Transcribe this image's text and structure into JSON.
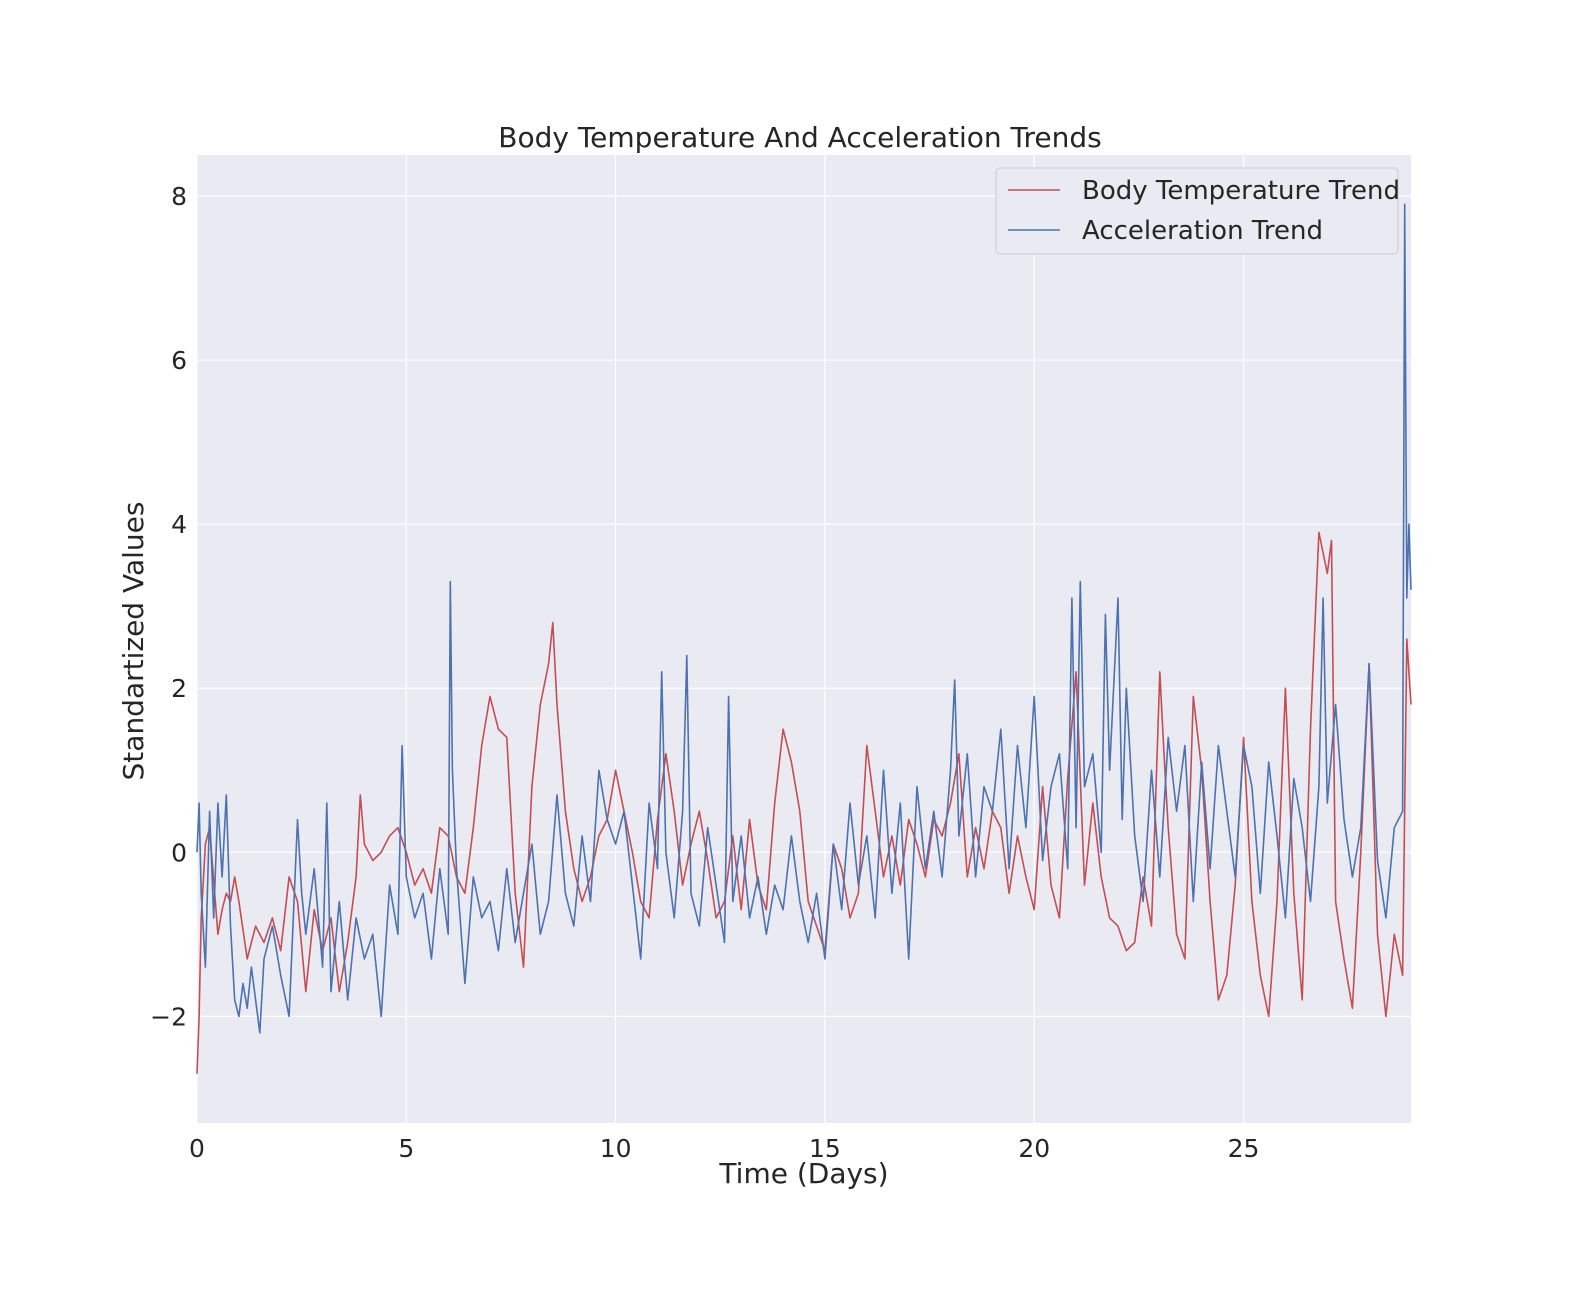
{
  "chart_data": {
    "type": "line",
    "title": "Body Temperature And Acceleration Trends",
    "xlabel": "Time (Days)",
    "ylabel": "Standartized Values",
    "xlim": [
      0,
      29
    ],
    "ylim": [
      -3.3,
      8.5
    ],
    "x_ticks": [
      0,
      5,
      10,
      15,
      20,
      25
    ],
    "y_ticks": [
      -2,
      0,
      2,
      4,
      6,
      8
    ],
    "y_tick_labels": [
      "−2",
      "0",
      "2",
      "4",
      "6",
      "8"
    ],
    "x_tick_labels": [
      "0",
      "5",
      "10",
      "15",
      "20",
      "25"
    ],
    "grid": true,
    "legend_position": "upper-right",
    "background": "#eaeaf2",
    "series": [
      {
        "name": "Body Temperature Trend",
        "color": "#c44e52",
        "x": [
          0,
          0.05,
          0.1,
          0.2,
          0.3,
          0.5,
          0.6,
          0.7,
          0.8,
          0.9,
          1.0,
          1.2,
          1.4,
          1.6,
          1.8,
          2.0,
          2.2,
          2.4,
          2.6,
          2.8,
          3.0,
          3.2,
          3.4,
          3.6,
          3.8,
          3.9,
          4.0,
          4.2,
          4.4,
          4.6,
          4.8,
          5.0,
          5.2,
          5.4,
          5.6,
          5.8,
          6.0,
          6.2,
          6.4,
          6.6,
          6.8,
          7.0,
          7.2,
          7.4,
          7.6,
          7.8,
          8.0,
          8.2,
          8.4,
          8.5,
          8.6,
          8.8,
          9.0,
          9.2,
          9.4,
          9.6,
          9.8,
          10.0,
          10.2,
          10.4,
          10.6,
          10.8,
          11.0,
          11.2,
          11.4,
          11.6,
          11.8,
          12.0,
          12.2,
          12.4,
          12.6,
          12.8,
          13.0,
          13.2,
          13.4,
          13.6,
          13.8,
          14.0,
          14.2,
          14.4,
          14.6,
          14.8,
          15.0,
          15.2,
          15.4,
          15.6,
          15.8,
          16.0,
          16.2,
          16.4,
          16.6,
          16.8,
          17.0,
          17.2,
          17.4,
          17.6,
          17.8,
          18.0,
          18.2,
          18.4,
          18.6,
          18.8,
          19.0,
          19.2,
          19.4,
          19.6,
          19.8,
          20.0,
          20.2,
          20.4,
          20.6,
          20.8,
          21.0,
          21.2,
          21.4,
          21.6,
          21.8,
          22.0,
          22.2,
          22.4,
          22.6,
          22.8,
          23.0,
          23.1,
          23.2,
          23.4,
          23.6,
          23.8,
          24.0,
          24.2,
          24.4,
          24.6,
          24.8,
          25.0,
          25.2,
          25.4,
          25.6,
          25.8,
          26.0,
          26.2,
          26.4,
          26.6,
          26.8,
          27.0,
          27.1,
          27.2,
          27.4,
          27.6,
          27.8,
          28.0,
          28.2,
          28.4,
          28.6,
          28.8,
          28.9,
          29.0
        ],
        "y": [
          -2.7,
          -2.0,
          -0.8,
          0.1,
          0.3,
          -1.0,
          -0.7,
          -0.5,
          -0.6,
          -0.3,
          -0.6,
          -1.3,
          -0.9,
          -1.1,
          -0.8,
          -1.2,
          -0.3,
          -0.6,
          -1.7,
          -0.7,
          -1.2,
          -0.8,
          -1.7,
          -1.1,
          -0.3,
          0.7,
          0.1,
          -0.1,
          0.0,
          0.2,
          0.3,
          0.0,
          -0.4,
          -0.2,
          -0.5,
          0.3,
          0.2,
          -0.3,
          -0.5,
          0.3,
          1.3,
          1.9,
          1.5,
          1.4,
          -0.5,
          -1.4,
          0.8,
          1.8,
          2.3,
          2.8,
          1.8,
          0.5,
          -0.2,
          -0.6,
          -0.3,
          0.2,
          0.4,
          1.0,
          0.5,
          0.0,
          -0.6,
          -0.8,
          0.4,
          1.2,
          0.5,
          -0.4,
          0.1,
          0.5,
          -0.1,
          -0.8,
          -0.6,
          0.2,
          -0.7,
          0.4,
          -0.4,
          -0.7,
          0.6,
          1.5,
          1.1,
          0.5,
          -0.6,
          -0.9,
          -1.2,
          0.1,
          -0.2,
          -0.8,
          -0.5,
          1.3,
          0.5,
          -0.3,
          0.2,
          -0.4,
          0.4,
          0.1,
          -0.3,
          0.4,
          0.2,
          0.6,
          1.2,
          -0.3,
          0.3,
          -0.2,
          0.5,
          0.3,
          -0.5,
          0.2,
          -0.3,
          -0.7,
          0.8,
          -0.4,
          -0.8,
          0.9,
          2.2,
          -0.4,
          0.6,
          -0.3,
          -0.8,
          -0.9,
          -1.2,
          -1.1,
          -0.3,
          -0.9,
          2.2,
          1.2,
          0.3,
          -1.0,
          -1.3,
          1.9,
          1.0,
          -0.6,
          -1.8,
          -1.5,
          -0.4,
          1.4,
          -0.6,
          -1.5,
          -2.0,
          -0.6,
          2.0,
          -0.5,
          -1.8,
          1.5,
          3.9,
          3.4,
          3.8,
          -0.6,
          -1.3,
          -1.9,
          0.0,
          2.3,
          -1.0,
          -2.0,
          -1.0,
          -1.5,
          2.6,
          1.8
        ]
      },
      {
        "name": "Acceleration Trend",
        "color": "#4c72b0",
        "x": [
          0,
          0.05,
          0.1,
          0.2,
          0.3,
          0.4,
          0.5,
          0.6,
          0.7,
          0.8,
          0.9,
          1.0,
          1.1,
          1.2,
          1.3,
          1.4,
          1.5,
          1.6,
          1.8,
          2.0,
          2.2,
          2.4,
          2.5,
          2.6,
          2.8,
          3.0,
          3.1,
          3.2,
          3.4,
          3.6,
          3.8,
          4.0,
          4.2,
          4.4,
          4.6,
          4.8,
          4.9,
          5.0,
          5.2,
          5.4,
          5.6,
          5.8,
          6.0,
          6.05,
          6.1,
          6.2,
          6.4,
          6.6,
          6.8,
          7.0,
          7.2,
          7.4,
          7.6,
          7.8,
          8.0,
          8.2,
          8.4,
          8.6,
          8.8,
          9.0,
          9.2,
          9.4,
          9.6,
          9.8,
          10.0,
          10.2,
          10.4,
          10.6,
          10.8,
          11.0,
          11.1,
          11.2,
          11.4,
          11.6,
          11.7,
          11.8,
          12.0,
          12.2,
          12.4,
          12.6,
          12.7,
          12.8,
          13.0,
          13.2,
          13.4,
          13.6,
          13.8,
          14.0,
          14.2,
          14.4,
          14.6,
          14.8,
          15.0,
          15.2,
          15.4,
          15.6,
          15.8,
          16.0,
          16.2,
          16.4,
          16.6,
          16.8,
          17.0,
          17.2,
          17.4,
          17.6,
          17.8,
          18.0,
          18.1,
          18.2,
          18.4,
          18.6,
          18.8,
          19.0,
          19.2,
          19.4,
          19.6,
          19.8,
          20.0,
          20.2,
          20.4,
          20.6,
          20.8,
          20.9,
          21.0,
          21.1,
          21.2,
          21.4,
          21.6,
          21.7,
          21.8,
          22.0,
          22.1,
          22.2,
          22.4,
          22.6,
          22.8,
          23.0,
          23.2,
          23.4,
          23.6,
          23.8,
          24.0,
          24.2,
          24.4,
          24.6,
          24.8,
          25.0,
          25.2,
          25.4,
          25.6,
          25.8,
          26.0,
          26.2,
          26.4,
          26.6,
          26.8,
          26.9,
          27.0,
          27.2,
          27.4,
          27.6,
          27.8,
          28.0,
          28.2,
          28.4,
          28.6,
          28.8,
          28.85,
          28.9,
          28.95,
          29.0
        ],
        "y": [
          0.0,
          0.6,
          -0.5,
          -1.4,
          0.5,
          -0.8,
          0.6,
          -0.3,
          0.7,
          -0.9,
          -1.8,
          -2.0,
          -1.6,
          -1.9,
          -1.4,
          -1.8,
          -2.2,
          -1.3,
          -0.9,
          -1.5,
          -2.0,
          0.4,
          -0.5,
          -1.0,
          -0.2,
          -1.4,
          0.6,
          -1.7,
          -0.6,
          -1.8,
          -0.8,
          -1.3,
          -1.0,
          -2.0,
          -0.4,
          -1.0,
          1.3,
          -0.3,
          -0.8,
          -0.5,
          -1.3,
          -0.2,
          -1.0,
          3.3,
          1.0,
          -0.2,
          -1.6,
          -0.3,
          -0.8,
          -0.6,
          -1.2,
          -0.2,
          -1.1,
          -0.5,
          0.1,
          -1.0,
          -0.6,
          0.7,
          -0.5,
          -0.9,
          0.2,
          -0.6,
          1.0,
          0.4,
          0.1,
          0.5,
          -0.4,
          -1.3,
          0.6,
          -0.2,
          2.2,
          0.0,
          -0.8,
          0.5,
          2.4,
          -0.5,
          -0.9,
          0.3,
          -0.4,
          -1.1,
          1.9,
          -0.6,
          0.2,
          -0.8,
          -0.3,
          -1.0,
          -0.4,
          -0.7,
          0.2,
          -0.6,
          -1.1,
          -0.5,
          -1.3,
          0.1,
          -0.7,
          0.6,
          -0.4,
          0.2,
          -0.8,
          1.0,
          -0.5,
          0.6,
          -1.3,
          0.8,
          -0.2,
          0.5,
          -0.3,
          1.0,
          2.1,
          0.2,
          1.2,
          -0.3,
          0.8,
          0.5,
          1.5,
          -0.2,
          1.3,
          0.3,
          1.9,
          -0.1,
          0.8,
          1.2,
          -0.2,
          3.1,
          0.3,
          3.3,
          0.8,
          1.2,
          0.0,
          2.9,
          1.0,
          3.1,
          0.4,
          2.0,
          0.2,
          -0.6,
          1.0,
          -0.3,
          1.4,
          0.5,
          1.3,
          -0.6,
          1.1,
          -0.2,
          1.3,
          0.5,
          -0.3,
          1.3,
          0.8,
          -0.5,
          1.1,
          0.2,
          -0.8,
          0.9,
          0.3,
          -0.6,
          0.8,
          3.1,
          0.6,
          1.8,
          0.4,
          -0.3,
          0.3,
          2.3,
          -0.1,
          -0.8,
          0.3,
          0.5,
          7.9,
          3.1,
          4.0,
          3.2
        ]
      }
    ]
  }
}
